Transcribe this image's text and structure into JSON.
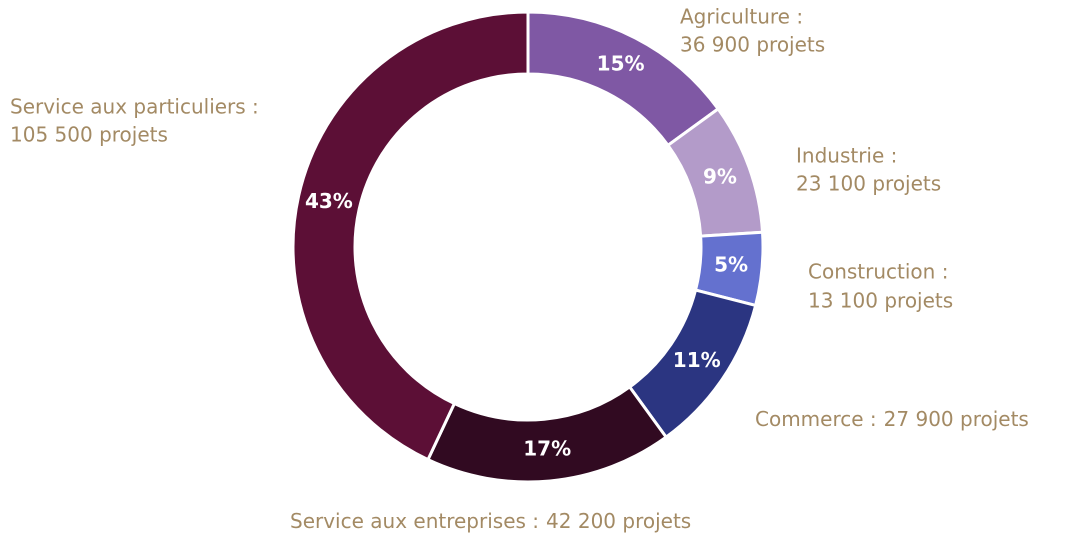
{
  "chart_data": {
    "type": "donut",
    "categories": [
      "Agriculture :",
      "Industrie :",
      "Construction :",
      "Commerce :",
      "Service aux entreprises :",
      "Service aux particuliers :"
    ],
    "values": [
      15,
      9,
      5,
      11,
      17,
      43
    ],
    "value_labels": [
      "15%",
      "9%",
      "5%",
      "11%",
      "17%",
      "43%"
    ],
    "project_labels": [
      "36 900 projets",
      "23 100 projets",
      "13 100 projets",
      "27 900 projets",
      "42 200 projets",
      "105 500 projets"
    ],
    "colors": [
      "#7f58a4",
      "#b39bc9",
      "#6471cf",
      "#2b3581",
      "#310a21",
      "#5c0f36"
    ]
  }
}
